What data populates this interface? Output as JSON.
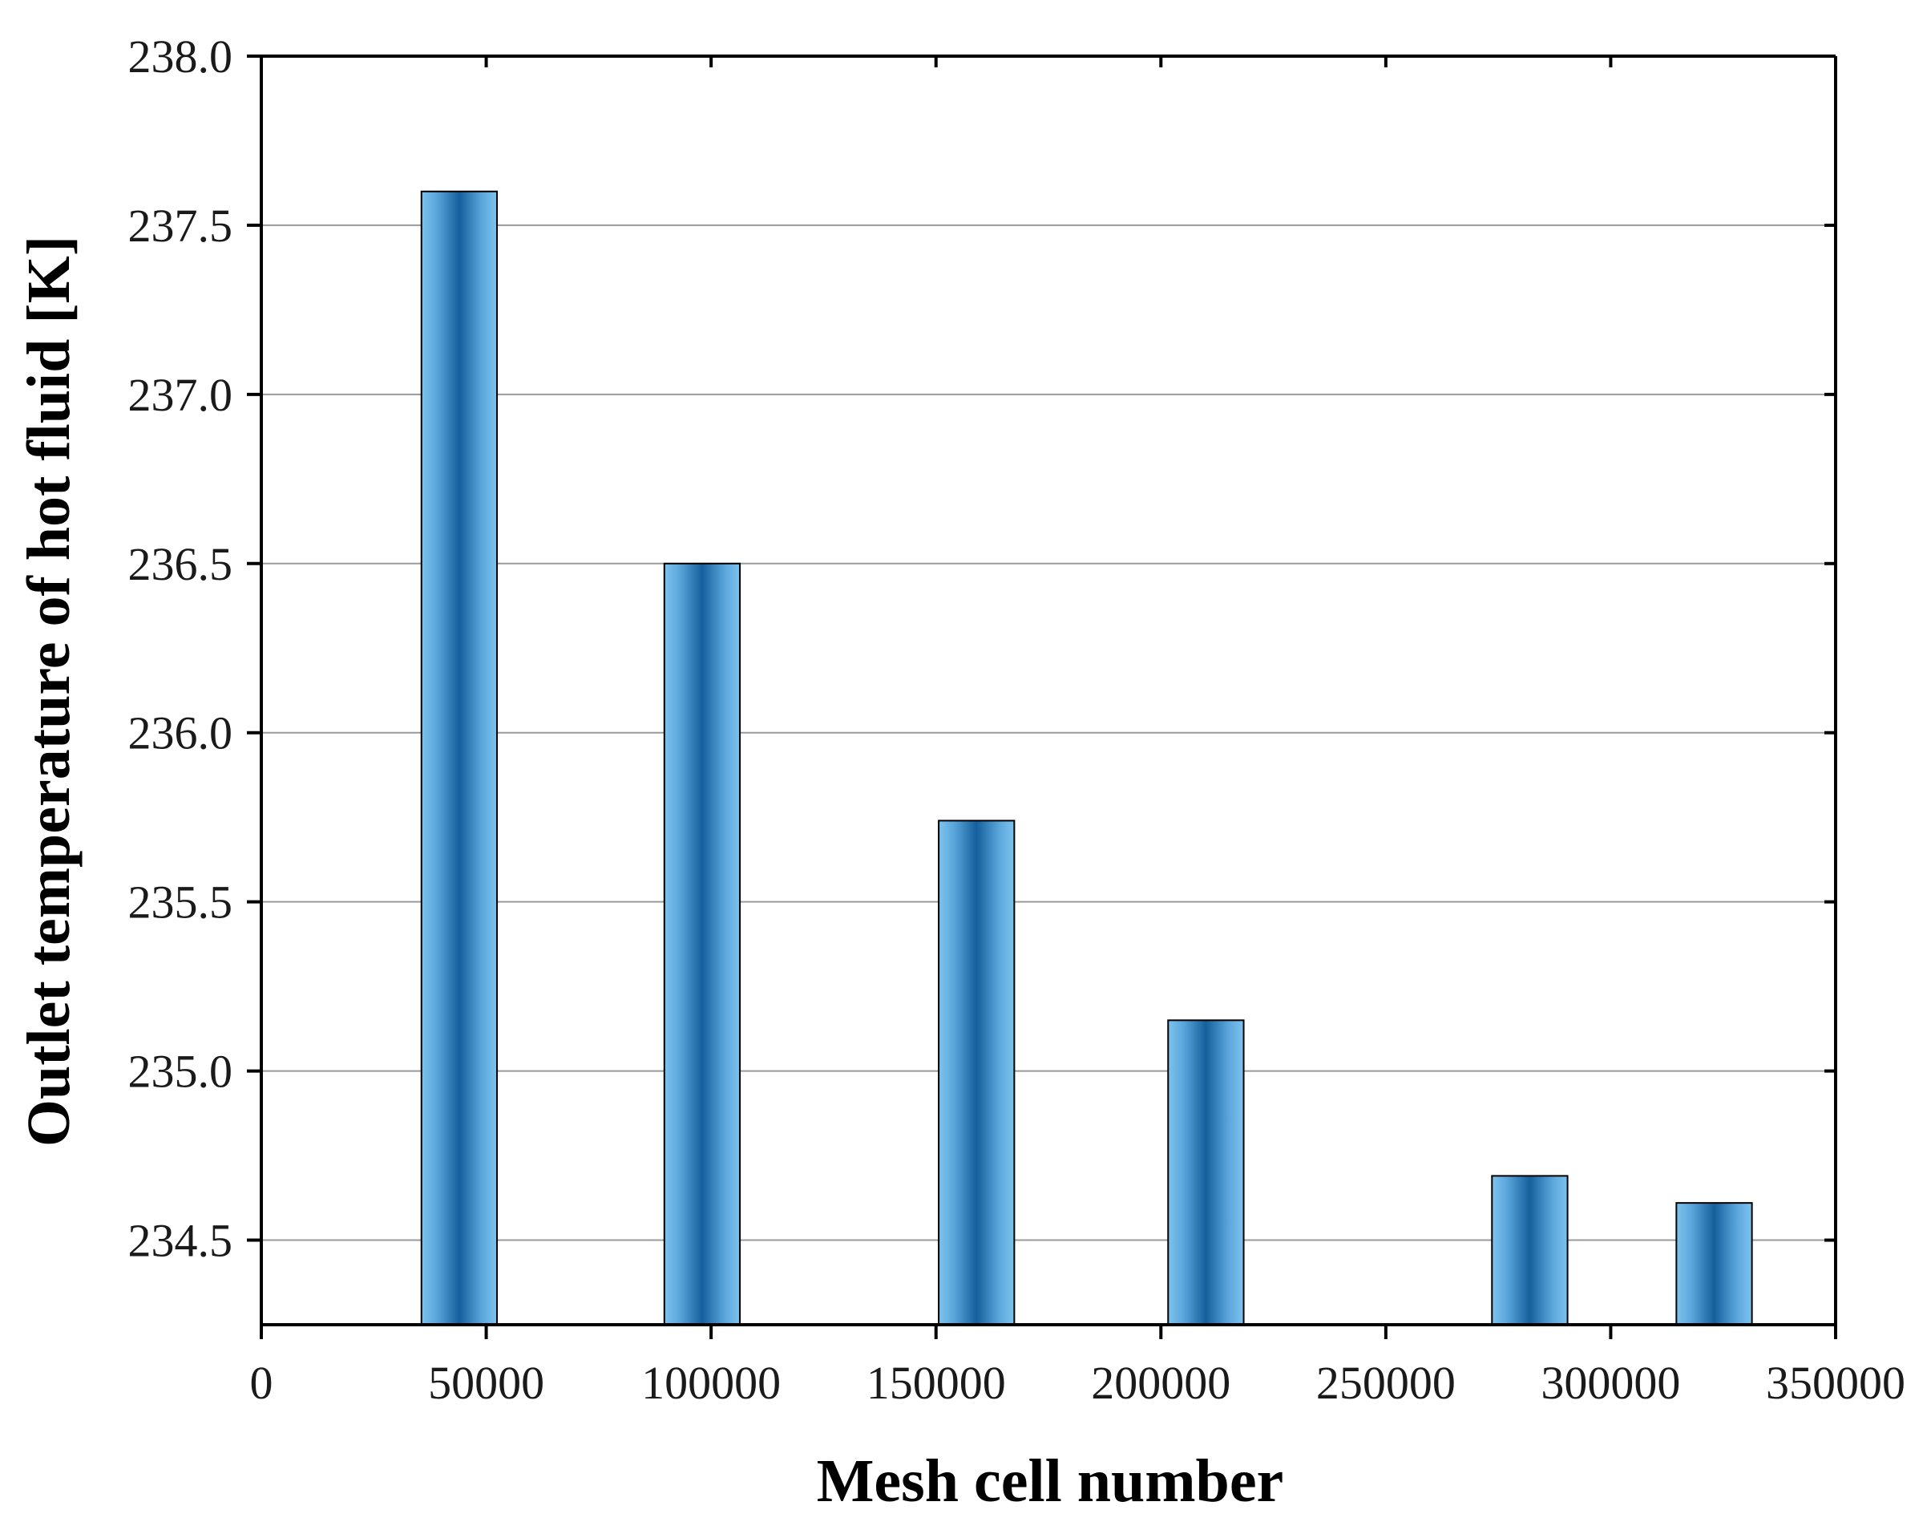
{
  "chart_data": {
    "type": "bar",
    "title": "",
    "xlabel": "Mesh cell number",
    "ylabel": "Outlet temperature of hot fluid [K]",
    "x": [
      44000,
      98000,
      159000,
      210000,
      282000,
      323000
    ],
    "values": [
      237.6,
      236.5,
      235.74,
      235.15,
      234.69,
      234.61
    ],
    "xlim": [
      0,
      350000
    ],
    "ylim": [
      234.25,
      238.0
    ],
    "x_ticks": [
      0,
      50000,
      100000,
      150000,
      200000,
      250000,
      300000,
      350000
    ],
    "x_tick_labels": [
      "0",
      "50000",
      "100000",
      "150000",
      "200000",
      "250000",
      "300000",
      "350000"
    ],
    "y_ticks": [
      234.5,
      235.0,
      235.5,
      236.0,
      236.5,
      237.0,
      237.5,
      238.0
    ],
    "y_tick_labels": [
      "234.5",
      "235.0",
      "235.5",
      "236.0",
      "236.5",
      "237.0",
      "237.5",
      "238.0"
    ],
    "grid": "horizontal",
    "legend": "none",
    "colors": {
      "bar_edge": "#7ec3ee",
      "bar_center": "#15609c",
      "bar_outline": "#000000",
      "gridline": "#9a9a9a",
      "axis": "#000000"
    }
  }
}
